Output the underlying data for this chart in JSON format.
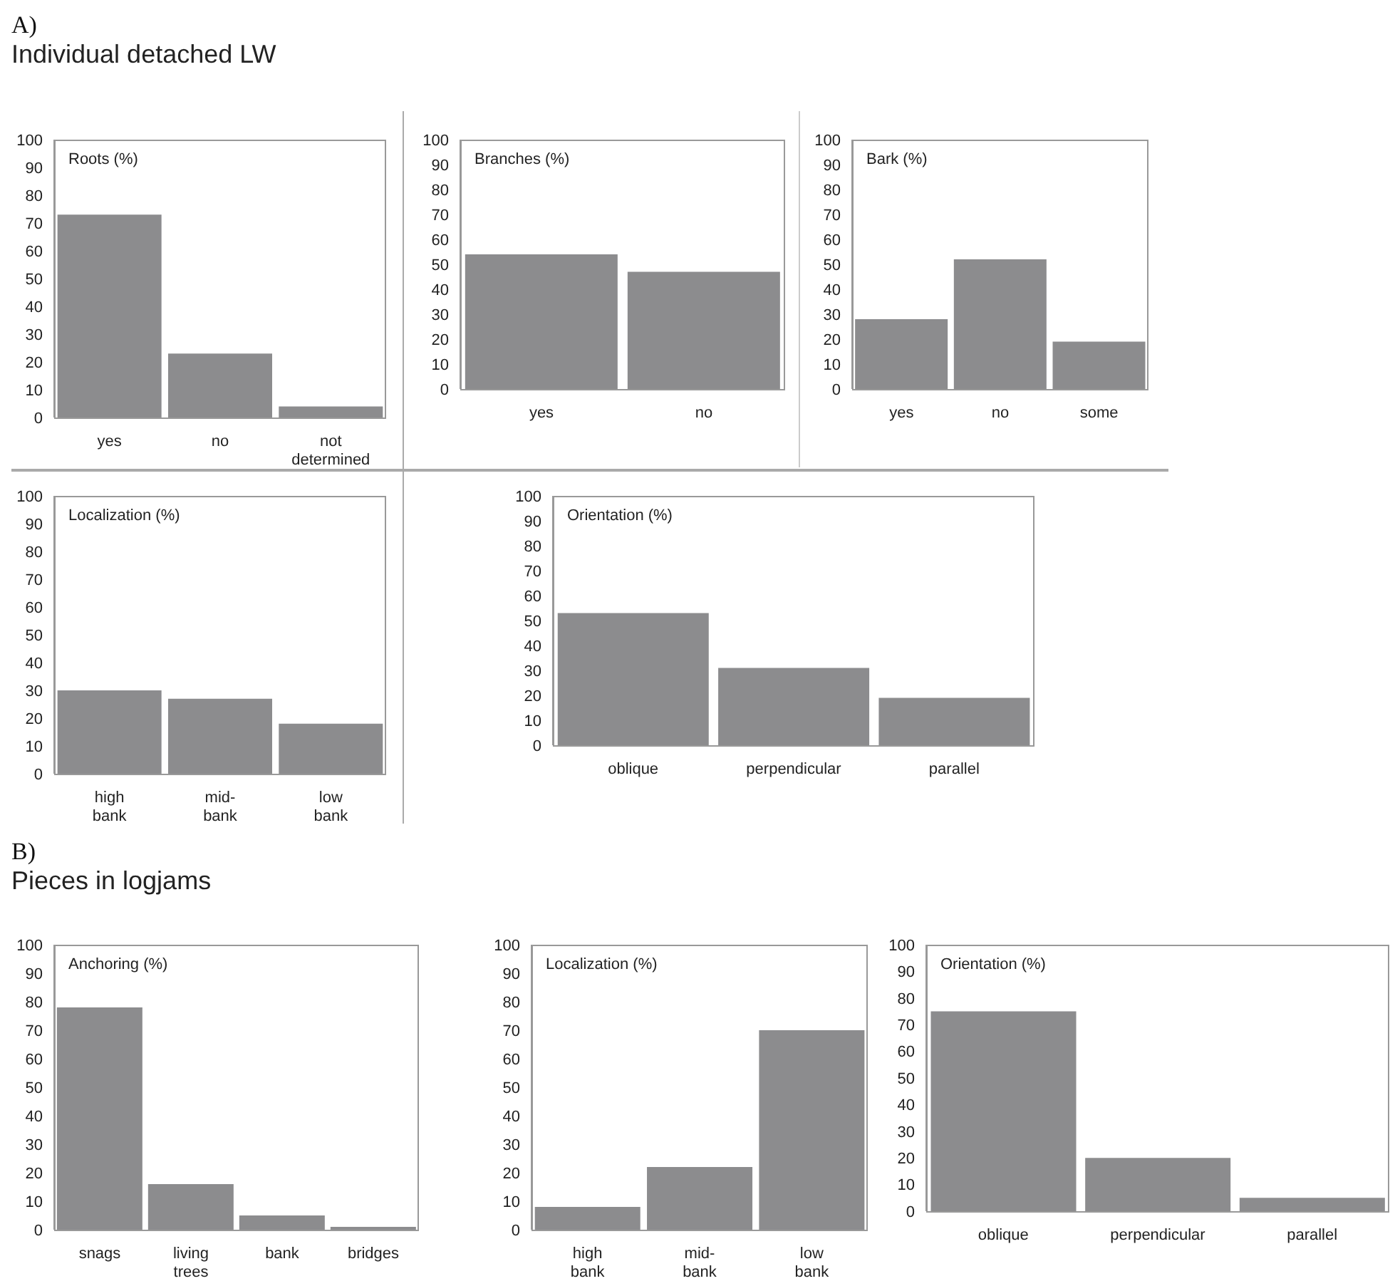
{
  "chart_data": [
    {
      "type": "bar",
      "annotations": [
        "A)"
      ],
      "subtitle": "Individual detached LW",
      "title": "Roots (%)",
      "categories": [
        "yes",
        "no",
        "not determined"
      ],
      "values": [
        73,
        23,
        4
      ],
      "color": "#8c8c8e",
      "ylim": [
        0,
        100
      ],
      "yticks": [
        0,
        10,
        20,
        30,
        40,
        50,
        60,
        70,
        80,
        90,
        100
      ]
    },
    {
      "type": "bar",
      "title": "Branches (%)",
      "categories": [
        "yes",
        "no"
      ],
      "values": [
        54,
        47
      ],
      "color": "#8c8c8e",
      "ylim": [
        0,
        100
      ],
      "yticks": [
        0,
        10,
        20,
        30,
        40,
        50,
        60,
        70,
        80,
        90,
        100
      ]
    },
    {
      "type": "bar",
      "title": "Bark (%)",
      "categories": [
        "yes",
        "no",
        "some"
      ],
      "values": [
        28,
        52,
        19
      ],
      "color": "#8c8c8e",
      "ylim": [
        0,
        100
      ],
      "yticks": [
        0,
        10,
        20,
        30,
        40,
        50,
        60,
        70,
        80,
        90,
        100
      ]
    },
    {
      "type": "bar",
      "title": "Localization (%)",
      "categories": [
        "high bank",
        "mid-bank",
        "low bank"
      ],
      "values": [
        30,
        27,
        18
      ],
      "color": "#8c8c8e",
      "ylim": [
        0,
        100
      ],
      "yticks": [
        0,
        10,
        20,
        30,
        40,
        50,
        60,
        70,
        80,
        90,
        100
      ]
    },
    {
      "type": "bar",
      "title": "Orientation (%)",
      "categories": [
        "oblique",
        "perpendicular",
        "parallel"
      ],
      "values": [
        53,
        31,
        19
      ],
      "color": "#8c8c8e",
      "ylim": [
        0,
        100
      ],
      "yticks": [
        0,
        10,
        20,
        30,
        40,
        50,
        60,
        70,
        80,
        90,
        100
      ]
    },
    {
      "type": "bar",
      "annotations": [
        "B)"
      ],
      "subtitle": "Pieces in logjams",
      "title": "Anchoring (%)",
      "categories": [
        "snags",
        "living trees",
        "bank",
        "bridges"
      ],
      "values": [
        78,
        16,
        5,
        1
      ],
      "color": "#8c8c8e",
      "ylim": [
        0,
        100
      ],
      "yticks": [
        0,
        10,
        20,
        30,
        40,
        50,
        60,
        70,
        80,
        90,
        100
      ]
    },
    {
      "type": "bar",
      "title": "Localization (%)",
      "categories": [
        "high bank",
        "mid-bank",
        "low bank"
      ],
      "values": [
        8,
        22,
        70
      ],
      "color": "#8c8c8e",
      "ylim": [
        0,
        100
      ],
      "yticks": [
        0,
        10,
        20,
        30,
        40,
        50,
        60,
        70,
        80,
        90,
        100
      ]
    },
    {
      "type": "bar",
      "title": "Orientation (%)",
      "categories": [
        "oblique",
        "perpendicular",
        "parallel"
      ],
      "values": [
        75,
        20,
        5
      ],
      "color": "#8c8c8e",
      "ylim": [
        0,
        100
      ],
      "yticks": [
        0,
        10,
        20,
        30,
        40,
        50,
        60,
        70,
        80,
        90,
        100
      ]
    }
  ]
}
